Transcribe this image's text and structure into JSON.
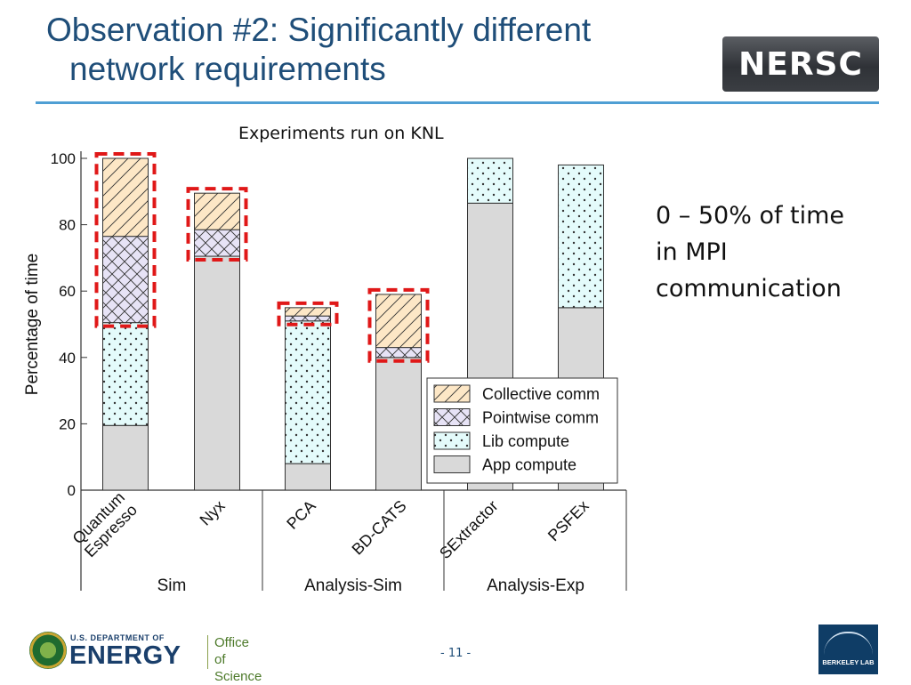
{
  "slide": {
    "title_line1": "Observation #2: Significantly different",
    "title_line2": "network requirements",
    "subtitle": "Experiments run on KNL",
    "callout": [
      "0 – 50% of time",
      "in MPI",
      "communication"
    ],
    "page_number": "- 11 -"
  },
  "logos": {
    "nersc": "NERSC",
    "doe_top": "U.S. DEPARTMENT OF",
    "doe_main": "ENERGY",
    "office_line1": "Office of",
    "office_line2": "Science",
    "berkeley": "BERKELEY LAB"
  },
  "chart_data": {
    "type": "bar",
    "stacked": true,
    "ylabel": "Percentage of time",
    "ylim": [
      0,
      100
    ],
    "yticks": [
      0,
      20,
      40,
      60,
      80,
      100
    ],
    "categories": [
      "Quantum Espresso",
      "Nyx",
      "PCA",
      "BD-CATS",
      "SExtractor",
      "PSFEx"
    ],
    "category_lines": [
      [
        "Quantum",
        "Espresso"
      ],
      [
        "Nyx"
      ],
      [
        "PCA"
      ],
      [
        "BD-CATS"
      ],
      [
        "SExtractor"
      ],
      [
        "PSFEx"
      ]
    ],
    "groups": [
      {
        "label": "Sim",
        "categories": [
          "Quantum Espresso",
          "Nyx"
        ]
      },
      {
        "label": "Analysis-Sim",
        "categories": [
          "PCA",
          "BD-CATS"
        ]
      },
      {
        "label": "Analysis-Exp",
        "categories": [
          "SExtractor",
          "PSFEx"
        ]
      }
    ],
    "series": [
      {
        "name": "App compute",
        "values": [
          19.5,
          70.5,
          8,
          40,
          86.5,
          55
        ]
      },
      {
        "name": "Lib compute",
        "values": [
          31,
          0,
          43,
          0,
          13.5,
          43
        ]
      },
      {
        "name": "Pointwise comm",
        "values": [
          26,
          8,
          1.5,
          3,
          0,
          0
        ]
      },
      {
        "name": "Collective comm",
        "values": [
          23.5,
          11,
          2.5,
          16,
          0,
          0
        ]
      }
    ],
    "legend_order": [
      "Collective comm",
      "Pointwise comm",
      "Lib compute",
      "App compute"
    ],
    "legend_position": "bottom-right",
    "highlighted_categories": [
      "Quantum Espresso",
      "Nyx",
      "PCA",
      "BD-CATS"
    ],
    "colors": {
      "App compute": "#d9d9d9",
      "Lib compute": "#e4fbfb",
      "Pointwise comm": "#e7e3f6",
      "Collective comm": "#fde7c6",
      "highlight": "#e01818"
    }
  }
}
